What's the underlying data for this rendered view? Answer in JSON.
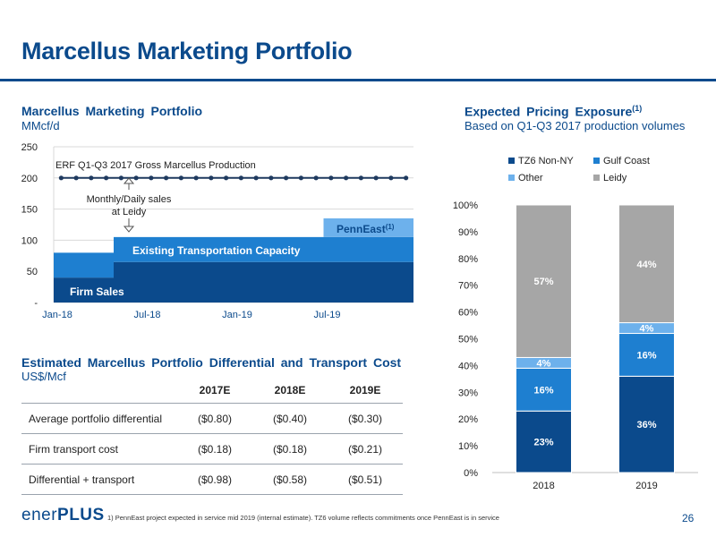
{
  "title": "Marcellus Marketing Portfolio",
  "left_chart": {
    "title": "Marcellus Marketing Portfolio",
    "subtitle": "MMcf/d",
    "chart_data": {
      "type": "area",
      "x": [
        "Jan-18",
        "Feb-18",
        "Mar-18",
        "Apr-18",
        "May-18",
        "Jun-18",
        "Jul-18",
        "Aug-18",
        "Sep-18",
        "Oct-18",
        "Nov-18",
        "Dec-18",
        "Jan-19",
        "Feb-19",
        "Mar-19",
        "Apr-19",
        "May-19",
        "Jun-19",
        "Jul-19",
        "Aug-19",
        "Sep-19",
        "Oct-19",
        "Nov-19",
        "Dec-19"
      ],
      "x_tick_labels": [
        "Jan-18",
        "Jul-18",
        "Jan-19",
        "Jul-19"
      ],
      "y_tick_labels": [
        "-",
        "50",
        "100",
        "150",
        "200",
        "250"
      ],
      "ylim": [
        0,
        250
      ],
      "series": [
        {
          "name": "Firm Sales",
          "color": "#0b4a8c",
          "values": [
            40,
            40,
            40,
            40,
            65,
            65,
            65,
            65,
            65,
            65,
            65,
            65,
            65,
            65,
            65,
            65,
            65,
            65,
            65,
            65,
            65,
            65,
            65,
            65
          ]
        },
        {
          "name": "Existing Transportation Capacity",
          "color": "#1e7fd0",
          "values": [
            40,
            40,
            40,
            40,
            40,
            40,
            40,
            40,
            40,
            40,
            40,
            40,
            40,
            40,
            40,
            40,
            40,
            40,
            40,
            40,
            40,
            40,
            40,
            40
          ]
        },
        {
          "name": "PennEast",
          "color": "#6db1ec",
          "values": [
            0,
            0,
            0,
            0,
            0,
            0,
            0,
            0,
            0,
            0,
            0,
            0,
            0,
            0,
            0,
            0,
            0,
            0,
            30,
            30,
            30,
            30,
            30,
            30
          ]
        }
      ],
      "line": {
        "name": "ERF Q1-Q3 2017 Gross Marcellus Production",
        "value": 200,
        "color": "#1f3a5f"
      },
      "annotation": {
        "text_line1": "Monthly/Daily sales",
        "text_line2": "at Leidy"
      },
      "grid": true
    },
    "labels": {
      "firm_sales": "Firm Sales",
      "existing": "Existing Transportation Capacity",
      "penneast": "PennEast",
      "penneast_sup": "(1)",
      "production": "ERF Q1-Q3 2017 Gross Marcellus Production"
    }
  },
  "right_chart": {
    "title": "Expected Pricing Exposure",
    "title_sup": "(1)",
    "subtitle": "Based on Q1-Q3 2017 production volumes",
    "chart_data": {
      "type": "bar",
      "stacked": true,
      "categories": [
        "2018",
        "2019"
      ],
      "ylim": [
        0,
        100
      ],
      "y_tick_labels": [
        "0%",
        "10%",
        "20%",
        "30%",
        "40%",
        "50%",
        "60%",
        "70%",
        "80%",
        "90%",
        "100%"
      ],
      "series": [
        {
          "name": "TZ6 Non-NY",
          "color": "#0b4a8c",
          "values": [
            23,
            36
          ],
          "labels": [
            "23%",
            "36%"
          ]
        },
        {
          "name": "Gulf Coast",
          "color": "#1e7fd0",
          "values": [
            16,
            16
          ],
          "labels": [
            "16%",
            "16%"
          ]
        },
        {
          "name": "Other",
          "color": "#6db1ec",
          "values": [
            4,
            4
          ],
          "labels": [
            "4%",
            "4%"
          ]
        },
        {
          "name": "Leidy",
          "color": "#a6a6a6",
          "values": [
            57,
            44
          ],
          "labels": [
            "57%",
            "44%"
          ]
        }
      ],
      "legend_position": "top"
    }
  },
  "table": {
    "title": "Estimated Marcellus Portfolio Differential and Transport Cost",
    "subtitle": "US$/Mcf",
    "columns": [
      "",
      "2017E",
      "2018E",
      "2019E"
    ],
    "rows": [
      [
        "Average portfolio differential",
        "($0.80)",
        "($0.40)",
        "($0.30)"
      ],
      [
        "Firm transport cost",
        "($0.18)",
        "($0.18)",
        "($0.21)"
      ],
      [
        "Differential + transport",
        "($0.98)",
        "($0.58)",
        "($0.51)"
      ]
    ]
  },
  "footer": {
    "logo_lo": "ener",
    "logo_hi": "PLUS",
    "note": "1)     PennEast project expected in service mid 2019 (internal estimate). TZ6 volume reflects commitments once PennEast is in service",
    "page_number": "26"
  }
}
